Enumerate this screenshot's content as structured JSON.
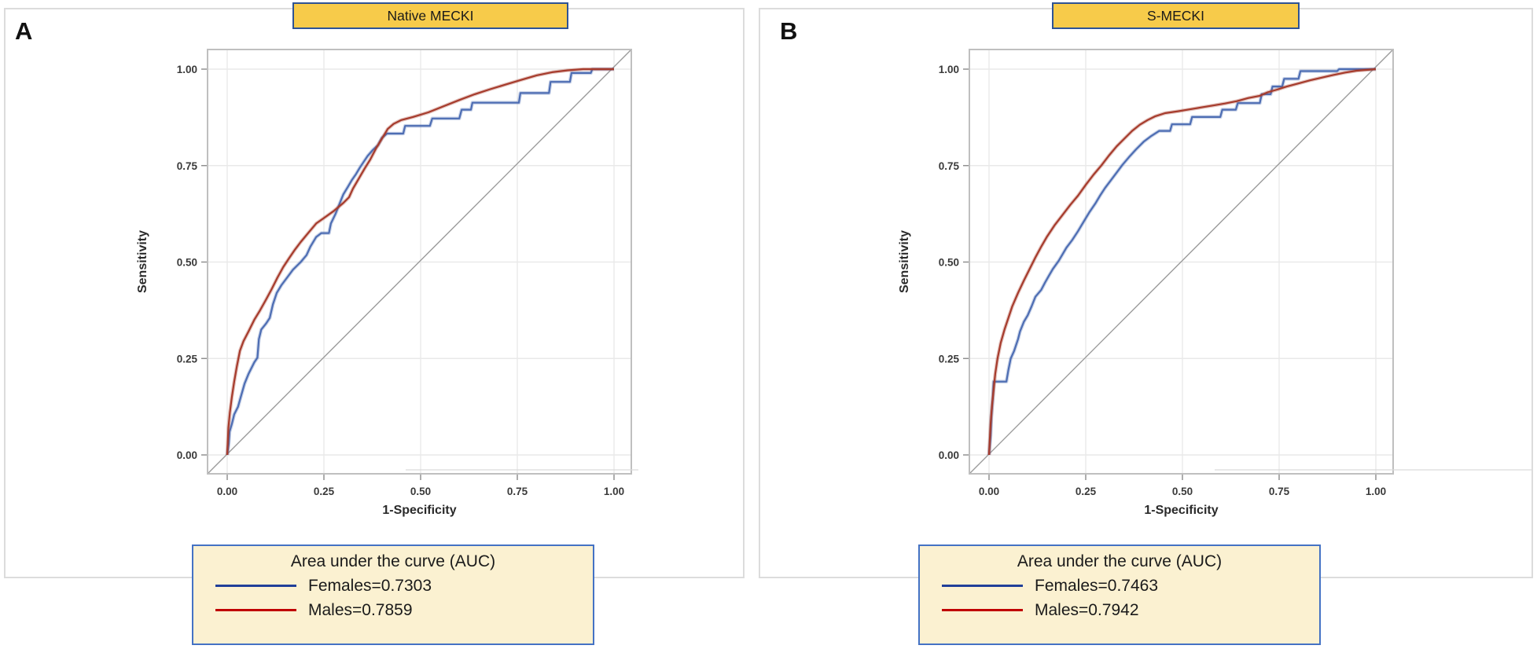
{
  "figure": {
    "background": "#ffffff",
    "panels": [
      {
        "letter": "A",
        "title": "Native MECKI",
        "title_box": {
          "fill": "#F7CB4A",
          "border": "#2E5395"
        },
        "legend": {
          "title": "Area under the curve (AUC)",
          "fill": "#FBF1D1",
          "border": "#4472C4",
          "entries": [
            {
              "label": "Females=0.7303",
              "color": "#203F99"
            },
            {
              "label": "Males=0.7859",
              "color": "#C00000"
            }
          ]
        }
      },
      {
        "letter": "B",
        "title": "S-MECKI",
        "title_box": {
          "fill": "#F7CB4A",
          "border": "#2E5395"
        },
        "legend": {
          "title": "Area under the curve (AUC)",
          "fill": "#FBF1D1",
          "border": "#4472C4",
          "entries": [
            {
              "label": "Females=0.7463",
              "color": "#203F99"
            },
            {
              "label": "Males=0.7942",
              "color": "#C00000"
            }
          ]
        }
      }
    ]
  },
  "chart_data": [
    {
      "type": "line",
      "subtype": "roc_curve",
      "panel": "A",
      "title": "Native MECKI",
      "xlabel": "1-Specificity",
      "ylabel": "Sensitivity",
      "xlim": [
        0,
        1
      ],
      "ylim": [
        0,
        1
      ],
      "x_ticks": [
        0,
        0.25,
        0.5,
        0.75,
        1.0
      ],
      "y_ticks": [
        0,
        0.25,
        0.5,
        0.75,
        1.0
      ],
      "x_tick_labels": [
        "0.00",
        "0.25",
        "0.50",
        "0.75",
        "1.00"
      ],
      "y_tick_labels": [
        "0.00",
        "0.25",
        "0.50",
        "0.75",
        "1.00"
      ],
      "grid": true,
      "diagonal_reference": true,
      "legend_position": "below",
      "series": [
        {
          "name": "Females",
          "auc": 0.7303,
          "color": "#4D6DB3",
          "points": [
            [
              0,
              0
            ],
            [
              0.004,
              0.03
            ],
            [
              0.006,
              0.06
            ],
            [
              0.012,
              0.08
            ],
            [
              0.018,
              0.105
            ],
            [
              0.028,
              0.125
            ],
            [
              0.035,
              0.15
            ],
            [
              0.045,
              0.185
            ],
            [
              0.055,
              0.21
            ],
            [
              0.07,
              0.24
            ],
            [
              0.078,
              0.252
            ],
            [
              0.082,
              0.3
            ],
            [
              0.088,
              0.325
            ],
            [
              0.1,
              0.34
            ],
            [
              0.11,
              0.355
            ],
            [
              0.118,
              0.39
            ],
            [
              0.128,
              0.42
            ],
            [
              0.14,
              0.44
            ],
            [
              0.155,
              0.46
            ],
            [
              0.17,
              0.48
            ],
            [
              0.19,
              0.5
            ],
            [
              0.205,
              0.518
            ],
            [
              0.215,
              0.54
            ],
            [
              0.23,
              0.565
            ],
            [
              0.243,
              0.575
            ],
            [
              0.263,
              0.575
            ],
            [
              0.268,
              0.6
            ],
            [
              0.28,
              0.625
            ],
            [
              0.29,
              0.65
            ],
            [
              0.3,
              0.675
            ],
            [
              0.312,
              0.695
            ],
            [
              0.322,
              0.712
            ],
            [
              0.333,
              0.728
            ],
            [
              0.343,
              0.745
            ],
            [
              0.353,
              0.76
            ],
            [
              0.363,
              0.775
            ],
            [
              0.376,
              0.79
            ],
            [
              0.39,
              0.803
            ],
            [
              0.4,
              0.822
            ],
            [
              0.413,
              0.833
            ],
            [
              0.455,
              0.833
            ],
            [
              0.46,
              0.853
            ],
            [
              0.524,
              0.853
            ],
            [
              0.53,
              0.872
            ],
            [
              0.6,
              0.872
            ],
            [
              0.606,
              0.895
            ],
            [
              0.63,
              0.895
            ],
            [
              0.634,
              0.913
            ],
            [
              0.754,
              0.913
            ],
            [
              0.758,
              0.938
            ],
            [
              0.832,
              0.938
            ],
            [
              0.836,
              0.967
            ],
            [
              0.886,
              0.967
            ],
            [
              0.89,
              0.99
            ],
            [
              0.94,
              0.99
            ],
            [
              0.944,
              1
            ],
            [
              1,
              1
            ]
          ]
        },
        {
          "name": "Males",
          "auc": 0.7859,
          "color": "#A63B2C",
          "points": [
            [
              0,
              0
            ],
            [
              0.003,
              0.07
            ],
            [
              0.007,
              0.11
            ],
            [
              0.012,
              0.15
            ],
            [
              0.018,
              0.19
            ],
            [
              0.025,
              0.23
            ],
            [
              0.033,
              0.27
            ],
            [
              0.042,
              0.295
            ],
            [
              0.055,
              0.32
            ],
            [
              0.07,
              0.35
            ],
            [
              0.085,
              0.375
            ],
            [
              0.1,
              0.402
            ],
            [
              0.115,
              0.43
            ],
            [
              0.13,
              0.46
            ],
            [
              0.145,
              0.487
            ],
            [
              0.16,
              0.51
            ],
            [
              0.175,
              0.532
            ],
            [
              0.19,
              0.552
            ],
            [
              0.21,
              0.576
            ],
            [
              0.23,
              0.6
            ],
            [
              0.25,
              0.614
            ],
            [
              0.275,
              0.632
            ],
            [
              0.3,
              0.653
            ],
            [
              0.315,
              0.668
            ],
            [
              0.325,
              0.69
            ],
            [
              0.34,
              0.716
            ],
            [
              0.355,
              0.742
            ],
            [
              0.37,
              0.766
            ],
            [
              0.385,
              0.795
            ],
            [
              0.4,
              0.82
            ],
            [
              0.415,
              0.845
            ],
            [
              0.43,
              0.858
            ],
            [
              0.45,
              0.868
            ],
            [
              0.48,
              0.876
            ],
            [
              0.52,
              0.888
            ],
            [
              0.56,
              0.904
            ],
            [
              0.6,
              0.92
            ],
            [
              0.64,
              0.935
            ],
            [
              0.68,
              0.948
            ],
            [
              0.72,
              0.96
            ],
            [
              0.76,
              0.972
            ],
            [
              0.8,
              0.984
            ],
            [
              0.84,
              0.992
            ],
            [
              0.88,
              0.997
            ],
            [
              0.92,
              1
            ],
            [
              1,
              1
            ]
          ]
        }
      ]
    },
    {
      "type": "line",
      "subtype": "roc_curve",
      "panel": "B",
      "title": "S-MECKI",
      "xlabel": "1-Specificity",
      "ylabel": "Sensitivity",
      "xlim": [
        0,
        1
      ],
      "ylim": [
        0,
        1
      ],
      "x_ticks": [
        0,
        0.25,
        0.5,
        0.75,
        1.0
      ],
      "y_ticks": [
        0,
        0.25,
        0.5,
        0.75,
        1.0
      ],
      "x_tick_labels": [
        "0.00",
        "0.25",
        "0.50",
        "0.75",
        "1.00"
      ],
      "y_tick_labels": [
        "0.00",
        "0.25",
        "0.50",
        "0.75",
        "1.00"
      ],
      "grid": true,
      "diagonal_reference": true,
      "legend_position": "below",
      "series": [
        {
          "name": "Females",
          "auc": 0.7463,
          "color": "#4D6DB3",
          "points": [
            [
              0,
              0
            ],
            [
              0.004,
              0.05
            ],
            [
              0.006,
              0.1
            ],
            [
              0.01,
              0.15
            ],
            [
              0.012,
              0.19
            ],
            [
              0.045,
              0.19
            ],
            [
              0.05,
              0.22
            ],
            [
              0.056,
              0.25
            ],
            [
              0.065,
              0.27
            ],
            [
              0.075,
              0.3
            ],
            [
              0.08,
              0.32
            ],
            [
              0.09,
              0.345
            ],
            [
              0.1,
              0.362
            ],
            [
              0.11,
              0.385
            ],
            [
              0.12,
              0.41
            ],
            [
              0.135,
              0.428
            ],
            [
              0.145,
              0.447
            ],
            [
              0.155,
              0.465
            ],
            [
              0.165,
              0.482
            ],
            [
              0.18,
              0.503
            ],
            [
              0.19,
              0.52
            ],
            [
              0.2,
              0.537
            ],
            [
              0.215,
              0.557
            ],
            [
              0.23,
              0.58
            ],
            [
              0.245,
              0.605
            ],
            [
              0.26,
              0.63
            ],
            [
              0.275,
              0.652
            ],
            [
              0.287,
              0.672
            ],
            [
              0.3,
              0.692
            ],
            [
              0.315,
              0.712
            ],
            [
              0.33,
              0.732
            ],
            [
              0.345,
              0.752
            ],
            [
              0.362,
              0.772
            ],
            [
              0.38,
              0.792
            ],
            [
              0.4,
              0.812
            ],
            [
              0.42,
              0.827
            ],
            [
              0.44,
              0.84
            ],
            [
              0.468,
              0.84
            ],
            [
              0.473,
              0.857
            ],
            [
              0.52,
              0.857
            ],
            [
              0.525,
              0.876
            ],
            [
              0.598,
              0.876
            ],
            [
              0.603,
              0.895
            ],
            [
              0.638,
              0.895
            ],
            [
              0.643,
              0.912
            ],
            [
              0.7,
              0.912
            ],
            [
              0.705,
              0.935
            ],
            [
              0.728,
              0.935
            ],
            [
              0.733,
              0.955
            ],
            [
              0.758,
              0.955
            ],
            [
              0.763,
              0.975
            ],
            [
              0.8,
              0.975
            ],
            [
              0.805,
              0.995
            ],
            [
              0.9,
              0.995
            ],
            [
              0.905,
              1
            ],
            [
              1,
              1
            ]
          ]
        },
        {
          "name": "Males",
          "auc": 0.7942,
          "color": "#A63B2C",
          "points": [
            [
              0,
              0
            ],
            [
              0.004,
              0.08
            ],
            [
              0.008,
              0.13
            ],
            [
              0.012,
              0.17
            ],
            [
              0.016,
              0.21
            ],
            [
              0.022,
              0.25
            ],
            [
              0.03,
              0.29
            ],
            [
              0.04,
              0.325
            ],
            [
              0.05,
              0.355
            ],
            [
              0.06,
              0.385
            ],
            [
              0.075,
              0.42
            ],
            [
              0.09,
              0.452
            ],
            [
              0.105,
              0.482
            ],
            [
              0.12,
              0.512
            ],
            [
              0.135,
              0.54
            ],
            [
              0.15,
              0.566
            ],
            [
              0.17,
              0.596
            ],
            [
              0.19,
              0.622
            ],
            [
              0.21,
              0.648
            ],
            [
              0.23,
              0.672
            ],
            [
              0.25,
              0.7
            ],
            [
              0.27,
              0.726
            ],
            [
              0.29,
              0.75
            ],
            [
              0.31,
              0.776
            ],
            [
              0.33,
              0.8
            ],
            [
              0.35,
              0.82
            ],
            [
              0.37,
              0.84
            ],
            [
              0.39,
              0.856
            ],
            [
              0.41,
              0.868
            ],
            [
              0.43,
              0.878
            ],
            [
              0.455,
              0.886
            ],
            [
              0.49,
              0.891
            ],
            [
              0.52,
              0.896
            ],
            [
              0.55,
              0.901
            ],
            [
              0.58,
              0.906
            ],
            [
              0.61,
              0.911
            ],
            [
              0.64,
              0.917
            ],
            [
              0.67,
              0.925
            ],
            [
              0.7,
              0.931
            ],
            [
              0.72,
              0.94
            ],
            [
              0.745,
              0.947
            ],
            [
              0.77,
              0.955
            ],
            [
              0.8,
              0.963
            ],
            [
              0.83,
              0.971
            ],
            [
              0.86,
              0.978
            ],
            [
              0.89,
              0.985
            ],
            [
              0.92,
              0.991
            ],
            [
              0.95,
              0.996
            ],
            [
              1,
              1
            ]
          ]
        }
      ]
    }
  ]
}
